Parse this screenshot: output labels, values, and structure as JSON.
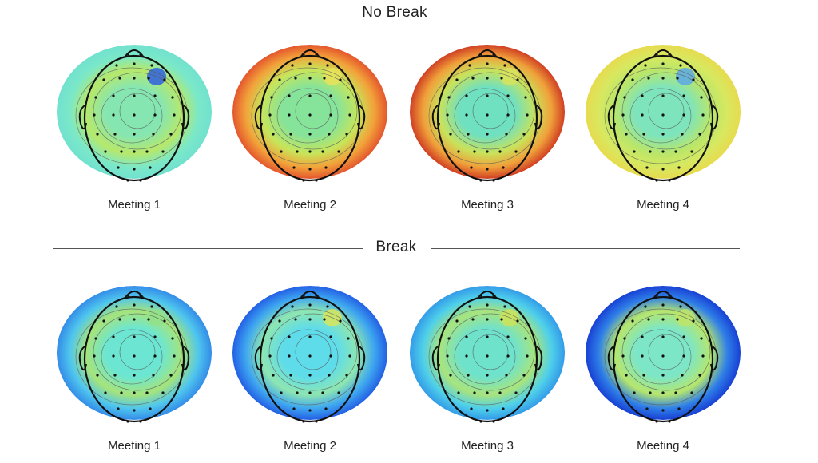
{
  "sections": [
    {
      "title": "No Break",
      "maps": [
        {
          "label": "Meeting 1",
          "colors": {
            "outer": "#6fe0d0",
            "mid": "#7be8c8",
            "center": "#86e6b2",
            "hot": "#b7e86a"
          },
          "blob": "#2f5fe0"
        },
        {
          "label": "Meeting 2",
          "colors": {
            "outer": "#e0442a",
            "mid": "#f2a23a",
            "center": "#86e39a",
            "hot": "#c7e55a"
          },
          "blob": "#e8e35a"
        },
        {
          "label": "Meeting 3",
          "colors": {
            "outer": "#c8281e",
            "mid": "#f0a03a",
            "center": "#6fe0c0",
            "hot": "#c9e25a"
          },
          "blob": "#d8e35e"
        },
        {
          "label": "Meeting 4",
          "colors": {
            "outer": "#ead84a",
            "mid": "#d8e860",
            "center": "#7ee4bc",
            "hot": "#b9e66a"
          },
          "blob": "#5aa8e8"
        }
      ]
    },
    {
      "title": "Break",
      "maps": [
        {
          "label": "Meeting 1",
          "colors": {
            "outer": "#2d7fe6",
            "mid": "#4fc6ee",
            "center": "#6ce6d2",
            "hot": "#a6e47a"
          },
          "blob": "#92e08a"
        },
        {
          "label": "Meeting 2",
          "colors": {
            "outer": "#1c4fe2",
            "mid": "#3ea6f0",
            "center": "#5fdcea",
            "hot": "#8ee6b0"
          },
          "blob": "#d6e55e"
        },
        {
          "label": "Meeting 3",
          "colors": {
            "outer": "#2c8fe8",
            "mid": "#4fd0ea",
            "center": "#6fe2cc",
            "hot": "#a9e47c"
          },
          "blob": "#cde35a"
        },
        {
          "label": "Meeting 4",
          "colors": {
            "outer": "#1232d0",
            "mid": "#2f7fe8",
            "center": "#7de6c6",
            "hot": "#b6e66c"
          },
          "blob": "#bde46a"
        }
      ]
    }
  ]
}
